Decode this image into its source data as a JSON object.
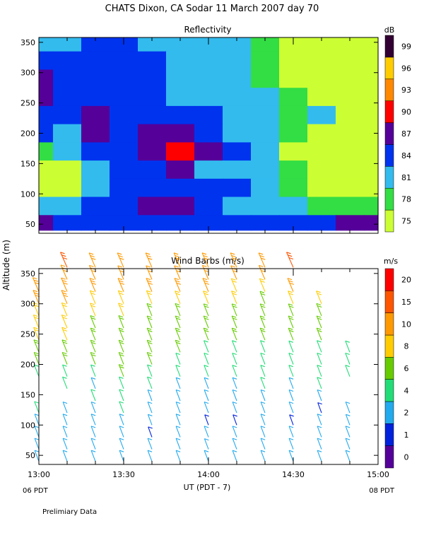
{
  "title": "CHATS Dixon, CA   Sodar   11 March 2007   day   70",
  "shared_axes": {
    "ylabel": "Altitude (m)",
    "xlabel": "UT   (PDT - 7)",
    "xticks": [
      "13:00",
      "13:30",
      "14:00",
      "14:30",
      "15:00"
    ],
    "x_left_note": "06 PDT",
    "x_right_note": "08 PDT",
    "yticks": [
      50,
      100,
      150,
      200,
      250,
      300,
      350
    ]
  },
  "footnote": "Prelimiary Data",
  "chart_data": [
    {
      "type": "heatmap",
      "title": "Reflectivity",
      "colorbar_label": "dB",
      "colorbar_ticks": [
        75,
        78,
        81,
        84,
        87,
        90,
        93,
        96,
        99
      ],
      "colors": [
        "#ccff33",
        "#33dd44",
        "#33bbee",
        "#0033ee",
        "#550099",
        "#ff0000",
        "#ff8800",
        "#ffcc00",
        "#330033"
      ],
      "x": [
        "13:00",
        "13:10",
        "13:20",
        "13:30",
        "13:40",
        "13:50",
        "14:00",
        "14:10",
        "14:20",
        "14:30",
        "14:40",
        "14:50",
        "15:00"
      ],
      "y": [
        350,
        320,
        290,
        260,
        230,
        200,
        170,
        140,
        110,
        80,
        50
      ],
      "values": [
        [
          81,
          81,
          84,
          84,
          81,
          81,
          81,
          81,
          78,
          75,
          75,
          75,
          75
        ],
        [
          84,
          84,
          84,
          84,
          84,
          81,
          81,
          81,
          78,
          75,
          75,
          75,
          75
        ],
        [
          87,
          84,
          84,
          84,
          84,
          81,
          81,
          81,
          78,
          75,
          75,
          75,
          75
        ],
        [
          87,
          84,
          84,
          84,
          84,
          81,
          81,
          81,
          81,
          78,
          75,
          75,
          75
        ],
        [
          84,
          84,
          87,
          84,
          84,
          84,
          84,
          81,
          81,
          78,
          81,
          75,
          75
        ],
        [
          84,
          81,
          87,
          84,
          87,
          87,
          84,
          81,
          81,
          78,
          75,
          75,
          75
        ],
        [
          78,
          81,
          84,
          84,
          87,
          90,
          87,
          84,
          81,
          75,
          75,
          75,
          75
        ],
        [
          75,
          75,
          81,
          84,
          84,
          87,
          81,
          81,
          81,
          78,
          75,
          75,
          75
        ],
        [
          75,
          75,
          81,
          84,
          84,
          84,
          84,
          84,
          81,
          78,
          75,
          75,
          75
        ],
        [
          81,
          81,
          84,
          84,
          87,
          87,
          84,
          81,
          81,
          81,
          78,
          78,
          78
        ],
        [
          87,
          84,
          84,
          84,
          84,
          84,
          84,
          84,
          84,
          84,
          84,
          87,
          87
        ]
      ]
    },
    {
      "type": "barbs",
      "title": "Wind Barbs (m/s)",
      "colorbar_label": "m/s",
      "colorbar_ticks": [
        0,
        1,
        2,
        4,
        6,
        8,
        10,
        15,
        20
      ],
      "colors": [
        "#550099",
        "#0022dd",
        "#22aaee",
        "#22dd77",
        "#66cc00",
        "#ffcc00",
        "#ff9900",
        "#ff5500",
        "#ff0000"
      ],
      "times": [
        "13:00",
        "13:10",
        "13:20",
        "13:30",
        "13:40",
        "13:50",
        "14:00",
        "14:10",
        "14:20",
        "14:30",
        "14:40",
        "14:50"
      ],
      "altitudes": [
        40,
        60,
        80,
        100,
        120,
        140,
        160,
        180,
        200,
        220,
        240,
        260,
        280,
        300,
        320,
        340,
        360
      ],
      "speeds": [
        [
          3,
          3,
          3,
          3,
          3,
          3,
          3,
          3,
          3,
          3,
          3,
          3
        ],
        [
          3,
          3,
          3,
          3,
          3,
          3,
          2,
          3,
          3,
          3,
          3,
          3
        ],
        [
          3,
          3,
          3,
          3,
          1,
          3,
          3,
          3,
          3,
          3,
          3,
          3
        ],
        [
          3,
          3,
          3,
          3,
          2,
          3,
          1,
          1,
          3,
          1,
          3,
          2
        ],
        [
          4,
          3,
          3,
          4,
          3,
          3,
          3,
          3,
          3,
          3,
          1,
          3
        ],
        [
          null,
          null,
          4,
          4,
          3,
          3,
          3,
          3,
          3,
          3,
          3,
          null
        ],
        [
          null,
          5,
          3,
          5,
          5,
          3,
          3,
          3,
          4,
          3,
          4,
          null
        ],
        [
          5,
          5,
          5,
          6,
          5,
          4,
          4,
          4,
          4,
          4,
          4,
          4
        ],
        [
          6,
          6,
          6,
          6,
          6,
          4,
          4,
          4,
          4,
          4,
          4,
          4
        ],
        [
          7,
          7,
          6,
          6,
          6,
          6,
          5,
          5,
          5,
          4,
          5,
          4
        ],
        [
          8,
          8,
          6,
          6,
          6,
          6,
          6,
          6,
          6,
          6,
          6,
          null
        ],
        [
          9,
          9,
          7,
          7,
          6,
          6,
          6,
          6,
          6,
          6,
          6,
          null
        ],
        [
          9,
          9,
          8,
          8,
          7,
          7,
          6,
          6,
          6,
          6,
          7,
          null
        ],
        [
          10,
          10,
          9,
          9,
          9,
          8,
          8,
          8,
          7,
          8,
          8,
          null
        ],
        [
          12,
          11,
          10,
          10,
          10,
          10,
          10,
          9,
          9,
          10,
          null,
          null
        ],
        [
          null,
          13,
          12,
          11,
          11,
          11,
          12,
          11,
          12,
          null,
          null,
          null
        ],
        [
          null,
          15,
          13,
          13,
          13,
          13,
          13,
          13,
          13,
          15,
          null,
          null
        ]
      ]
    }
  ]
}
